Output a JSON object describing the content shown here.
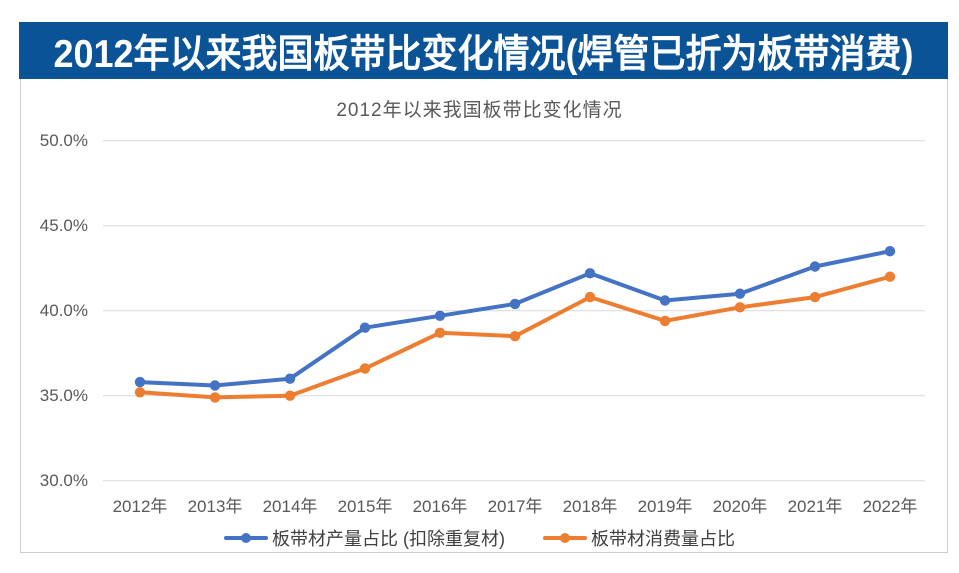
{
  "banner": {
    "title": "2012年以来我国板带比变化情况(焊管已折为板带消费)",
    "bg_color": "#0A5396",
    "text_color": "#FFFFFF"
  },
  "chart_data": {
    "type": "line",
    "title": "2012年以来我国板带比变化情况",
    "categories": [
      "2012年",
      "2013年",
      "2014年",
      "2015年",
      "2016年",
      "2017年",
      "2018年",
      "2019年",
      "2020年",
      "2021年",
      "2022年"
    ],
    "series": [
      {
        "name": "板带材产量占比 (扣除重复材)",
        "color": "#4472C4",
        "values": [
          35.8,
          35.6,
          36.0,
          39.0,
          39.7,
          40.4,
          42.2,
          40.6,
          41.0,
          42.6,
          43.5
        ]
      },
      {
        "name": "板带材消费量占比",
        "color": "#ED7D31",
        "values": [
          35.2,
          34.9,
          35.0,
          36.6,
          38.7,
          38.5,
          40.8,
          39.4,
          40.2,
          40.8,
          42.0
        ]
      }
    ],
    "ylim": [
      30,
      50
    ],
    "y_ticks": [
      {
        "label": "50.0%",
        "value": 50
      },
      {
        "label": "45.0%",
        "value": 45
      },
      {
        "label": "40.0%",
        "value": 40
      },
      {
        "label": "35.0%",
        "value": 35
      },
      {
        "label": "30.0%",
        "value": 30
      }
    ],
    "grid": true,
    "gridline_color": "#D9D9D9",
    "legend_position": "bottom"
  }
}
